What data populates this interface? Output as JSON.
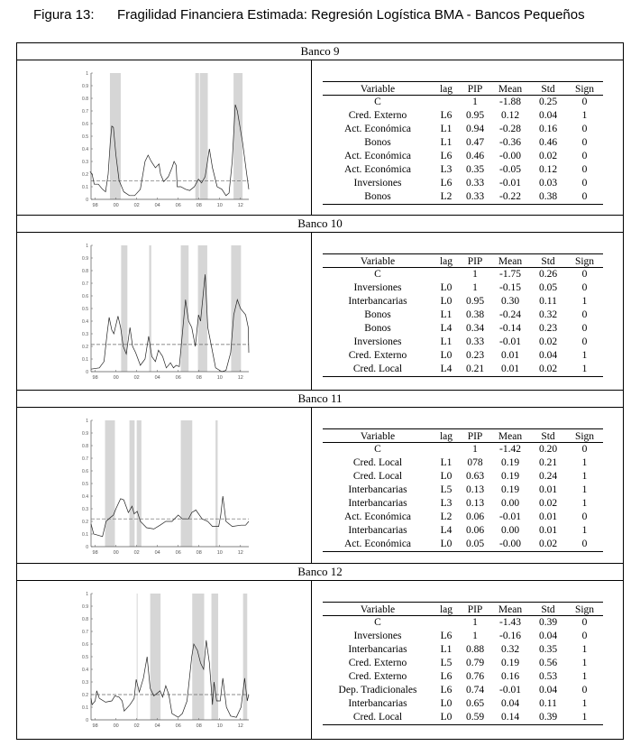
{
  "title": {
    "label": "Figura 13:",
    "text": "Fragilidad Financiera Estimada: Regresión Logística BMA - Bancos Pequeños"
  },
  "table_headers": [
    "Variable",
    "lag",
    "PIP",
    "Mean",
    "Std",
    "Sign"
  ],
  "banks": [
    {
      "name": "Banco 9",
      "rows": [
        [
          "C",
          "",
          "1",
          "-1.88",
          "0.25",
          "0"
        ],
        [
          "Cred. Externo",
          "L6",
          "0.95",
          "0.12",
          "0.04",
          "1"
        ],
        [
          "Act. Económica",
          "L1",
          "0.94",
          "-0.28",
          "0.16",
          "0"
        ],
        [
          "Bonos",
          "L1",
          "0.47",
          "-0.36",
          "0.46",
          "0"
        ],
        [
          "Act. Económica",
          "L6",
          "0.46",
          "-0.00",
          "0.02",
          "0"
        ],
        [
          "Act. Económica",
          "L3",
          "0.35",
          "-0.05",
          "0.12",
          "0"
        ],
        [
          "Inversiones",
          "L6",
          "0.33",
          "-0.01",
          "0.03",
          "0"
        ],
        [
          "Bonos",
          "L2",
          "0.33",
          "-0.22",
          "0.38",
          "0"
        ]
      ]
    },
    {
      "name": "Banco 10",
      "rows": [
        [
          "C",
          "",
          "1",
          "-1.75",
          "0.26",
          "0"
        ],
        [
          "Inversiones",
          "L0",
          "1",
          "-0.15",
          "0.05",
          "0"
        ],
        [
          "Interbancarias",
          "L0",
          "0.95",
          "0.30",
          "0.11",
          "1"
        ],
        [
          "Bonos",
          "L1",
          "0.38",
          "-0.24",
          "0.32",
          "0"
        ],
        [
          "Bonos",
          "L4",
          "0.34",
          "-0.14",
          "0.23",
          "0"
        ],
        [
          "Inversiones",
          "L1",
          "0.33",
          "-0.01",
          "0.02",
          "0"
        ],
        [
          "Cred. Externo",
          "L0",
          "0.23",
          "0.01",
          "0.04",
          "1"
        ],
        [
          "Cred. Local",
          "L4",
          "0.21",
          "0.01",
          "0.02",
          "1"
        ]
      ]
    },
    {
      "name": "Banco 11",
      "rows": [
        [
          "C",
          "",
          "1",
          "-1.42",
          "0.20",
          "0"
        ],
        [
          "Cred. Local",
          "L1",
          "078",
          "0.19",
          "0.21",
          "1"
        ],
        [
          "Cred. Local",
          "L0",
          "0.63",
          "0.19",
          "0.24",
          "1"
        ],
        [
          "Interbancarias",
          "L5",
          "0.13",
          "0.19",
          "0.01",
          "1"
        ],
        [
          "Interbancarias",
          "L3",
          "0.13",
          "0.00",
          "0.02",
          "1"
        ],
        [
          "Act. Económica",
          "L2",
          "0.06",
          "-0.01",
          "0.01",
          "0"
        ],
        [
          "Interbancarias",
          "L4",
          "0.06",
          "0.00",
          "0.01",
          "1"
        ],
        [
          "Act. Económica",
          "L0",
          "0.05",
          "-0.00",
          "0.02",
          "0"
        ]
      ]
    },
    {
      "name": "Banco 12",
      "rows": [
        [
          "C",
          "",
          "1",
          "-1.43",
          "0.39",
          "0"
        ],
        [
          "Inversiones",
          "L6",
          "1",
          "-0.16",
          "0.04",
          "0"
        ],
        [
          "Interbancarias",
          "L1",
          "0.88",
          "0.32",
          "0.35",
          "1"
        ],
        [
          "Cred. Externo",
          "L5",
          "0.79",
          "0.19",
          "0.56",
          "1"
        ],
        [
          "Cred. Externo",
          "L6",
          "0.76",
          "0.16",
          "0.53",
          "1"
        ],
        [
          "Dep. Tradicionales",
          "L6",
          "0.74",
          "-0.01",
          "0.04",
          "0"
        ],
        [
          "Interbancarias",
          "L0",
          "0.65",
          "0.04",
          "0.11",
          "1"
        ],
        [
          "Cred. Local",
          "L0",
          "0.59",
          "0.14",
          "0.39",
          "1"
        ]
      ]
    }
  ],
  "chart_data": [
    {
      "type": "line",
      "bank": "Banco 9",
      "xlim": [
        1997.6,
        2012.8
      ],
      "ylim": [
        0,
        1
      ],
      "x_ticks": [
        "98",
        "00",
        "02",
        "04",
        "06",
        "08",
        "10",
        "12"
      ],
      "y_ticks": [
        "0",
        "0.1",
        "0.2",
        "0.3",
        "0.4",
        "0.5",
        "0.6",
        "0.7",
        "0.8",
        "0.9",
        "1"
      ],
      "threshold": 0.145,
      "shaded_periods": [
        [
          1999.42,
          2000.46
        ],
        [
          2007.65,
          2008.0
        ],
        [
          2008.08,
          2008.85
        ],
        [
          2011.33,
          2012.2
        ]
      ],
      "series": [
        [
          1997.5,
          0.22
        ],
        [
          1997.7,
          0.2
        ],
        [
          1997.9,
          0.12
        ],
        [
          1998.3,
          0.12
        ],
        [
          1998.7,
          0.08
        ],
        [
          1999.0,
          0.06
        ],
        [
          1999.25,
          0.2
        ],
        [
          1999.45,
          0.45
        ],
        [
          1999.6,
          0.58
        ],
        [
          1999.75,
          0.57
        ],
        [
          2000.0,
          0.35
        ],
        [
          2000.3,
          0.15
        ],
        [
          2000.75,
          0.06
        ],
        [
          2001.3,
          0.03
        ],
        [
          2001.8,
          0.03
        ],
        [
          2002.35,
          0.08
        ],
        [
          2002.8,
          0.3
        ],
        [
          2003.1,
          0.35
        ],
        [
          2003.4,
          0.3
        ],
        [
          2003.8,
          0.25
        ],
        [
          2004.15,
          0.28
        ],
        [
          2004.3,
          0.2
        ],
        [
          2004.6,
          0.14
        ],
        [
          2005.05,
          0.18
        ],
        [
          2005.4,
          0.25
        ],
        [
          2005.6,
          0.3
        ],
        [
          2005.8,
          0.27
        ],
        [
          2005.9,
          0.1
        ],
        [
          2006.25,
          0.1
        ],
        [
          2006.7,
          0.08
        ],
        [
          2007.1,
          0.07
        ],
        [
          2007.55,
          0.1
        ],
        [
          2007.95,
          0.16
        ],
        [
          2008.25,
          0.13
        ],
        [
          2008.6,
          0.18
        ],
        [
          2009.0,
          0.4
        ],
        [
          2009.3,
          0.25
        ],
        [
          2009.75,
          0.1
        ],
        [
          2010.2,
          0.08
        ],
        [
          2010.6,
          0.03
        ],
        [
          2010.9,
          0.05
        ],
        [
          2011.2,
          0.3
        ],
        [
          2011.5,
          0.75
        ],
        [
          2011.7,
          0.7
        ],
        [
          2012.2,
          0.45
        ],
        [
          2012.6,
          0.2
        ],
        [
          2012.8,
          0.08
        ]
      ]
    },
    {
      "type": "line",
      "bank": "Banco 10",
      "xlim": [
        1997.6,
        2012.8
      ],
      "ylim": [
        0,
        1
      ],
      "x_ticks": [
        "98",
        "00",
        "02",
        "04",
        "06",
        "08",
        "10",
        "12"
      ],
      "y_ticks": [
        "0",
        "0.1",
        "0.2",
        "0.3",
        "0.4",
        "0.5",
        "0.6",
        "0.7",
        "0.8",
        "0.9",
        "1"
      ],
      "threshold": 0.215,
      "shaded_periods": [
        [
          2000.5,
          2001.1
        ],
        [
          2003.2,
          2003.4
        ],
        [
          2006.25,
          2007.0
        ],
        [
          2007.9,
          2008.8
        ],
        [
          2011.1,
          2012.05
        ]
      ],
      "series": [
        [
          1997.6,
          0.02
        ],
        [
          1998.4,
          0.03
        ],
        [
          1998.85,
          0.08
        ],
        [
          1999.15,
          0.3
        ],
        [
          1999.35,
          0.43
        ],
        [
          1999.6,
          0.33
        ],
        [
          1999.8,
          0.3
        ],
        [
          2000.2,
          0.44
        ],
        [
          2000.45,
          0.35
        ],
        [
          2000.7,
          0.2
        ],
        [
          2001.0,
          0.14
        ],
        [
          2001.35,
          0.35
        ],
        [
          2001.6,
          0.2
        ],
        [
          2001.9,
          0.15
        ],
        [
          2002.35,
          0.05
        ],
        [
          2002.8,
          0.1
        ],
        [
          2003.15,
          0.28
        ],
        [
          2003.45,
          0.12
        ],
        [
          2003.8,
          0.08
        ],
        [
          2004.1,
          0.17
        ],
        [
          2004.5,
          0.12
        ],
        [
          2004.85,
          0.03
        ],
        [
          2005.25,
          0.07
        ],
        [
          2005.55,
          0.03
        ],
        [
          2005.8,
          0.05
        ],
        [
          2006.1,
          0.04
        ],
        [
          2006.4,
          0.3
        ],
        [
          2006.7,
          0.57
        ],
        [
          2007.0,
          0.4
        ],
        [
          2007.3,
          0.35
        ],
        [
          2007.65,
          0.2
        ],
        [
          2007.95,
          0.45
        ],
        [
          2008.15,
          0.4
        ],
        [
          2008.6,
          0.77
        ],
        [
          2008.85,
          0.35
        ],
        [
          2009.2,
          0.2
        ],
        [
          2009.6,
          0.03
        ],
        [
          2010.2,
          0.0
        ],
        [
          2010.6,
          0.01
        ],
        [
          2011.05,
          0.15
        ],
        [
          2011.35,
          0.45
        ],
        [
          2011.7,
          0.57
        ],
        [
          2012.0,
          0.5
        ],
        [
          2012.5,
          0.45
        ],
        [
          2012.75,
          0.35
        ],
        [
          2012.8,
          0.15
        ]
      ]
    },
    {
      "type": "line",
      "bank": "Banco 11",
      "xlim": [
        1997.6,
        2012.8
      ],
      "ylim": [
        0,
        1
      ],
      "x_ticks": [
        "98",
        "00",
        "02",
        "04",
        "06",
        "08",
        "10",
        "12"
      ],
      "y_ticks": [
        "0",
        "0.1",
        "0.2",
        "0.3",
        "0.4",
        "0.5",
        "0.6",
        "0.7",
        "0.8",
        "0.9",
        "1"
      ],
      "threshold": 0.22,
      "shaded_periods": [
        [
          1998.95,
          1999.9
        ],
        [
          2001.3,
          2001.8
        ],
        [
          2002.0,
          2002.45
        ],
        [
          2006.25,
          2007.35
        ],
        [
          2009.6,
          2009.8
        ]
      ],
      "series": [
        [
          1997.6,
          0.18
        ],
        [
          1997.85,
          0.1
        ],
        [
          1998.3,
          0.09
        ],
        [
          1998.7,
          0.08
        ],
        [
          1999.05,
          0.2
        ],
        [
          1999.45,
          0.23
        ],
        [
          1999.75,
          0.25
        ],
        [
          2000.0,
          0.3
        ],
        [
          2000.45,
          0.38
        ],
        [
          2000.75,
          0.37
        ],
        [
          2001.2,
          0.27
        ],
        [
          2001.55,
          0.32
        ],
        [
          2001.75,
          0.26
        ],
        [
          2002.05,
          0.28
        ],
        [
          2002.35,
          0.2
        ],
        [
          2002.95,
          0.15
        ],
        [
          2003.65,
          0.14
        ],
        [
          2004.25,
          0.17
        ],
        [
          2004.8,
          0.2
        ],
        [
          2005.4,
          0.2
        ],
        [
          2006.0,
          0.25
        ],
        [
          2006.4,
          0.22
        ],
        [
          2007.0,
          0.22
        ],
        [
          2007.3,
          0.27
        ],
        [
          2007.7,
          0.29
        ],
        [
          2008.3,
          0.22
        ],
        [
          2008.85,
          0.2
        ],
        [
          2009.3,
          0.16
        ],
        [
          2009.9,
          0.16
        ],
        [
          2010.1,
          0.25
        ],
        [
          2010.3,
          0.4
        ],
        [
          2010.6,
          0.2
        ],
        [
          2011.2,
          0.16
        ],
        [
          2012.05,
          0.17
        ],
        [
          2012.5,
          0.17
        ],
        [
          2012.8,
          0.2
        ]
      ]
    },
    {
      "type": "line",
      "bank": "Banco 12",
      "xlim": [
        1997.6,
        2012.8
      ],
      "ylim": [
        0,
        1
      ],
      "x_ticks": [
        "98",
        "00",
        "02",
        "04",
        "06",
        "08",
        "10",
        "12"
      ],
      "y_ticks": [
        "0",
        "0.1",
        "0.2",
        "0.3",
        "0.4",
        "0.5",
        "0.6",
        "0.7",
        "0.8",
        "0.9",
        "1"
      ],
      "threshold": 0.2,
      "shaded_periods": [
        [
          2002.0,
          2002.08
        ],
        [
          2003.3,
          2004.3
        ],
        [
          2007.35,
          2008.5
        ],
        [
          2009.2,
          2009.85
        ],
        [
          2012.25,
          2012.65
        ]
      ],
      "series": [
        [
          1997.6,
          0.17
        ],
        [
          1997.7,
          0.12
        ],
        [
          1998.0,
          0.15
        ],
        [
          1998.15,
          0.23
        ],
        [
          1998.4,
          0.17
        ],
        [
          1999.0,
          0.14
        ],
        [
          1999.6,
          0.15
        ],
        [
          1999.9,
          0.19
        ],
        [
          2000.3,
          0.18
        ],
        [
          2000.6,
          0.15
        ],
        [
          2000.8,
          0.07
        ],
        [
          2001.35,
          0.12
        ],
        [
          2001.75,
          0.17
        ],
        [
          2001.95,
          0.32
        ],
        [
          2002.25,
          0.22
        ],
        [
          2002.65,
          0.33
        ],
        [
          2003.0,
          0.5
        ],
        [
          2003.3,
          0.25
        ],
        [
          2003.65,
          0.19
        ],
        [
          2004.25,
          0.23
        ],
        [
          2004.5,
          0.18
        ],
        [
          2004.8,
          0.27
        ],
        [
          2005.1,
          0.2
        ],
        [
          2005.4,
          0.05
        ],
        [
          2006.0,
          0.02
        ],
        [
          2006.4,
          0.05
        ],
        [
          2006.85,
          0.15
        ],
        [
          2007.3,
          0.5
        ],
        [
          2007.5,
          0.6
        ],
        [
          2007.85,
          0.55
        ],
        [
          2008.15,
          0.45
        ],
        [
          2008.45,
          0.4
        ],
        [
          2008.7,
          0.63
        ],
        [
          2009.0,
          0.45
        ],
        [
          2009.3,
          0.12
        ],
        [
          2009.45,
          0.3
        ],
        [
          2009.7,
          0.15
        ],
        [
          2010.05,
          0.15
        ],
        [
          2010.3,
          0.33
        ],
        [
          2010.65,
          0.1
        ],
        [
          2011.05,
          0.03
        ],
        [
          2011.6,
          0.02
        ],
        [
          2012.05,
          0.1
        ],
        [
          2012.4,
          0.33
        ],
        [
          2012.65,
          0.15
        ],
        [
          2012.8,
          0.2
        ]
      ]
    }
  ]
}
